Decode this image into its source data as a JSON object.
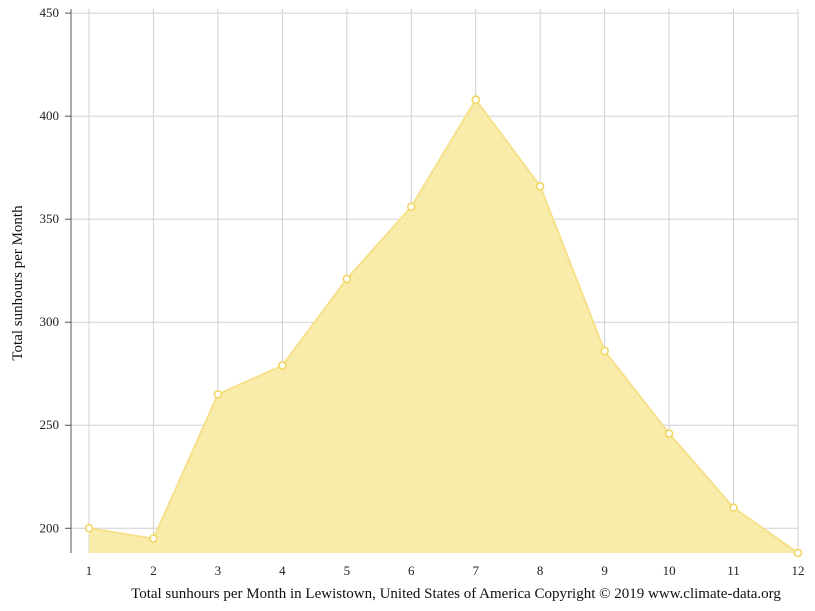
{
  "chart_data": {
    "type": "area",
    "x": [
      1,
      2,
      3,
      4,
      5,
      6,
      7,
      8,
      9,
      10,
      11,
      12
    ],
    "values": [
      200,
      195,
      265,
      279,
      321,
      356,
      408,
      366,
      286,
      246,
      210,
      188
    ],
    "xlabel": "Total sunhours per Month in Lewistown, United States of America Copyright © 2019 www.climate-data.org",
    "ylabel": "Total sunhours per Month",
    "ylim": [
      188,
      452
    ],
    "yticks": [
      200,
      250,
      300,
      350,
      400,
      450
    ],
    "xticks": [
      1,
      2,
      3,
      4,
      5,
      6,
      7,
      8,
      9,
      10,
      11,
      12
    ],
    "grid": true,
    "colors": {
      "fill": "#f8eaa2",
      "line": "#f6e08a",
      "marker_fill": "#ffffff",
      "marker_stroke": "#f2d45c",
      "grid": "#d0d0d0",
      "axis": "#555555"
    }
  }
}
